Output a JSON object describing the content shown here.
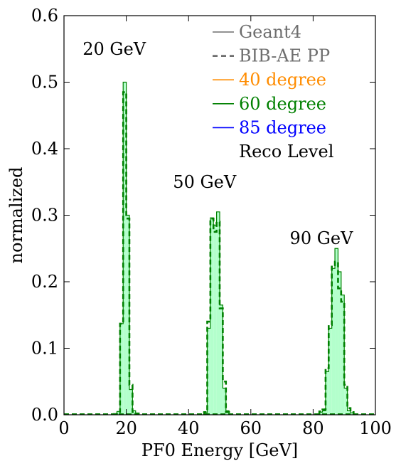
{
  "chart_data": {
    "type": "histogram",
    "xlabel": "PF0 Energy [GeV]",
    "ylabel": "normalized",
    "xlim": [
      0,
      100
    ],
    "ylim": [
      0,
      0.6
    ],
    "xticks": [
      0,
      20,
      40,
      60,
      80,
      100
    ],
    "yticks": [
      0.0,
      0.1,
      0.2,
      0.3,
      0.4,
      0.5,
      0.6
    ],
    "xtick_labels": [
      "0",
      "20",
      "40",
      "60",
      "80",
      "100"
    ],
    "ytick_labels": [
      "0.0",
      "0.1",
      "0.2",
      "0.3",
      "0.4",
      "0.5",
      "0.6"
    ],
    "grid": false,
    "bin_width": 1,
    "legend": {
      "placement": "top-right",
      "entries": [
        {
          "label": "Geant4",
          "style": "solid",
          "color": "#6e6e6e"
        },
        {
          "label": "BIB-AE PP",
          "style": "dashed",
          "color": "#6e6e6e"
        },
        {
          "label": "40 degree",
          "style": "solid",
          "color": "#ff8c00"
        },
        {
          "label": "60 degree",
          "style": "solid",
          "color": "#008000"
        },
        {
          "label": "85 degree",
          "style": "solid",
          "color": "#0000ff"
        },
        {
          "label": "Reco Level",
          "style": "none",
          "color": "#000000"
        }
      ]
    },
    "annotations": [
      {
        "text": "20 GeV",
        "x": 6,
        "y": 0.55
      },
      {
        "text": "50 GeV",
        "x": 35,
        "y": 0.35
      },
      {
        "text": "90 GeV",
        "x": 72.5,
        "y": 0.265
      }
    ],
    "series": [
      {
        "name": "60 degree",
        "color": "#008000",
        "fill": "#b3ffcc",
        "style": "solid",
        "bins": [
          {
            "x": 16,
            "y": 0.001
          },
          {
            "x": 17,
            "y": 0.005
          },
          {
            "x": 18,
            "y": 0.137
          },
          {
            "x": 19,
            "y": 0.5
          },
          {
            "x": 20,
            "y": 0.3
          },
          {
            "x": 21,
            "y": 0.038
          },
          {
            "x": 22,
            "y": 0.006
          },
          {
            "x": 23,
            "y": 0.002
          },
          {
            "x": 45,
            "y": 0.003
          },
          {
            "x": 46,
            "y": 0.13
          },
          {
            "x": 47,
            "y": 0.296
          },
          {
            "x": 48,
            "y": 0.285
          },
          {
            "x": 49,
            "y": 0.305
          },
          {
            "x": 50,
            "y": 0.165
          },
          {
            "x": 51,
            "y": 0.04
          },
          {
            "x": 52,
            "y": 0.006
          },
          {
            "x": 82,
            "y": 0.004
          },
          {
            "x": 83,
            "y": 0.006
          },
          {
            "x": 84,
            "y": 0.065
          },
          {
            "x": 85,
            "y": 0.13
          },
          {
            "x": 86,
            "y": 0.22
          },
          {
            "x": 87,
            "y": 0.25
          },
          {
            "x": 88,
            "y": 0.215
          },
          {
            "x": 89,
            "y": 0.18
          },
          {
            "x": 90,
            "y": 0.04
          },
          {
            "x": 91,
            "y": 0.006
          },
          {
            "x": 92,
            "y": 0.003
          }
        ]
      },
      {
        "name": "BIB-AE PP",
        "color": "#008000",
        "style": "dashed",
        "bins": [
          {
            "x": 16,
            "y": 0.001
          },
          {
            "x": 17,
            "y": 0.004
          },
          {
            "x": 18,
            "y": 0.137
          },
          {
            "x": 19,
            "y": 0.485
          },
          {
            "x": 20,
            "y": 0.295
          },
          {
            "x": 21,
            "y": 0.045
          },
          {
            "x": 22,
            "y": 0.004
          },
          {
            "x": 23,
            "y": 0.002
          },
          {
            "x": 45,
            "y": 0.004
          },
          {
            "x": 46,
            "y": 0.14
          },
          {
            "x": 47,
            "y": 0.295
          },
          {
            "x": 48,
            "y": 0.275
          },
          {
            "x": 49,
            "y": 0.29
          },
          {
            "x": 50,
            "y": 0.16
          },
          {
            "x": 51,
            "y": 0.05
          },
          {
            "x": 52,
            "y": 0.004
          },
          {
            "x": 82,
            "y": 0.005
          },
          {
            "x": 83,
            "y": 0.008
          },
          {
            "x": 84,
            "y": 0.07
          },
          {
            "x": 85,
            "y": 0.135
          },
          {
            "x": 86,
            "y": 0.225
          },
          {
            "x": 87,
            "y": 0.23
          },
          {
            "x": 88,
            "y": 0.19
          },
          {
            "x": 89,
            "y": 0.17
          },
          {
            "x": 90,
            "y": 0.045
          },
          {
            "x": 91,
            "y": 0.01
          },
          {
            "x": 92,
            "y": 0.004
          }
        ]
      }
    ]
  }
}
